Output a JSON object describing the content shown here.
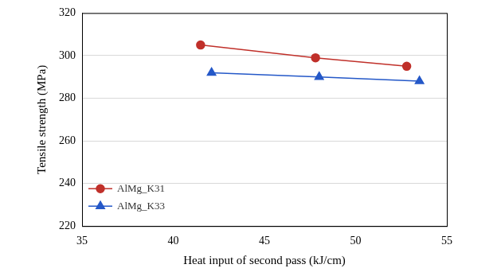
{
  "chart_data": {
    "type": "line",
    "x_label": "Heat input of second pass (kJ/cm)",
    "y_label": "Tensile strength (MPa)",
    "xlim": [
      35,
      55
    ],
    "xticks": [
      35,
      40,
      45,
      50,
      55
    ],
    "ylim": [
      220,
      320
    ],
    "yticks": [
      220,
      240,
      260,
      280,
      300,
      320
    ],
    "grid": true,
    "legend": "lower left",
    "series": [
      {
        "name": "AlMg_K31",
        "color": "#c0302a",
        "marker": "circle",
        "x": [
          41.5,
          47.8,
          52.8
        ],
        "values": [
          305,
          299,
          295
        ]
      },
      {
        "name": "AlMg_K33",
        "color": "#2458c8",
        "marker": "triangle",
        "x": [
          42.1,
          48.0,
          53.5
        ],
        "values": [
          292,
          290,
          288
        ]
      }
    ]
  }
}
